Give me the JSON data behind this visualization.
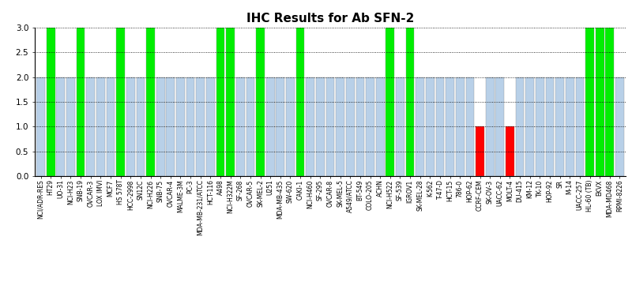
{
  "title": "IHC Results for Ab SFN-2",
  "categories": [
    "NCI/ADR-RES",
    "HT29",
    "UO-31",
    "NCI-H23",
    "SNB-19",
    "OVCAR-3",
    "LOX IMVI",
    "MCF7",
    "HS 578T",
    "HCC-2998",
    "SN12C",
    "NCI-H226",
    "SNB-75",
    "OVCAR-4",
    "MALME-3M",
    "PC-3",
    "MDA-MB-231/ATCC",
    "HCT-116",
    "A498",
    "NCI-H322M",
    "SF-268",
    "OVCAR-5",
    "SK-MEL-2",
    "U251",
    "MDA-MB-435",
    "SW-620",
    "CAKI-1",
    "NCI-H460",
    "SF-295",
    "OVCAR-8",
    "SK-MEL-5",
    "A549/ATCC",
    "BT-549",
    "COLO-205",
    "ACHN",
    "NCI-H522",
    "SF-539",
    "IGROV1",
    "SK-MEL-28",
    "K-562",
    "T-47-D",
    "HCT-15",
    "786-0",
    "HOP-62",
    "CCRF-CEM",
    "SK-OV-3",
    "UACC-62",
    "MOLT-4",
    "DU-415",
    "KM-12",
    "TK-10",
    "HOP-92",
    "SR",
    "M-14",
    "UACC-257",
    "HL-60 (TB)",
    "EKVX",
    "MDA-MD468",
    "RPMI-8226"
  ],
  "values": [
    2,
    3,
    2,
    2,
    3,
    2,
    2,
    2,
    3,
    2,
    2,
    3,
    2,
    2,
    2,
    2,
    2,
    2,
    3,
    3,
    2,
    2,
    3,
    2,
    2,
    2,
    3,
    2,
    2,
    2,
    2,
    2,
    2,
    2,
    2,
    3,
    2,
    3,
    2,
    2,
    2,
    2,
    2,
    2,
    1,
    2,
    2,
    1,
    2,
    2,
    2,
    2,
    2,
    2,
    2,
    3,
    3,
    3,
    2
  ],
  "bar_colors_map": {
    "0": "#ff0000",
    "1": "#ff0000",
    "2": "#b8d0e8",
    "3": "#00ee00"
  },
  "ylim": [
    0.0,
    3.0
  ],
  "yticks": [
    0.0,
    0.5,
    1.0,
    1.5,
    2.0,
    2.5,
    3.0
  ],
  "grid_y": [
    0.5,
    1.0,
    1.5,
    2.0,
    2.5,
    3.0
  ],
  "background_color": "#ffffff",
  "title_fontsize": 11,
  "tick_fontsize": 5.5,
  "ytick_fontsize": 7.5
}
